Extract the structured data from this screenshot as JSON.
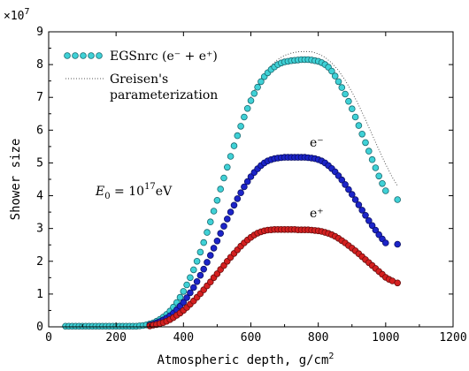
{
  "chart_data": {
    "type": "scatter",
    "xlabel": "Atmospheric depth, g/cm",
    "xlabel_sup": "2",
    "ylabel": "Shower size",
    "y_multiplier_prefix": "×10",
    "y_multiplier_exp": "7",
    "xlim": [
      0,
      1200
    ],
    "ylim": [
      0,
      9
    ],
    "x_ticks": [
      0,
      200,
      400,
      600,
      800,
      1000,
      1200
    ],
    "y_ticks": [
      0,
      1,
      2,
      3,
      4,
      5,
      6,
      7,
      8,
      9
    ],
    "grid": false,
    "legend_placement": "top-left",
    "legend": [
      {
        "label": "EGSnrc (e⁻ + e⁺)",
        "marker": "circle",
        "color": "#3fd1d6"
      },
      {
        "label_line1": "Greisen's",
        "label_line2": "parameterization",
        "style": "dotted",
        "color": "#555555"
      }
    ],
    "annotation": {
      "text_main": "E",
      "text_sub": "0",
      "text_eq": " = 10",
      "text_sup": "17",
      "text_unit": "eV"
    },
    "series": [
      {
        "name": "EGSnrc (e⁻ + e⁺)",
        "label": "",
        "color": "#3fd1d6",
        "edge": "#1a6a70",
        "points": [
          [
            50,
            0.02
          ],
          [
            60,
            0.02
          ],
          [
            70,
            0.02
          ],
          [
            80,
            0.02
          ],
          [
            90,
            0.02
          ],
          [
            100,
            0.02
          ],
          [
            110,
            0.02
          ],
          [
            120,
            0.02
          ],
          [
            130,
            0.02
          ],
          [
            140,
            0.02
          ],
          [
            150,
            0.02
          ],
          [
            160,
            0.02
          ],
          [
            170,
            0.02
          ],
          [
            180,
            0.02
          ],
          [
            190,
            0.02
          ],
          [
            200,
            0.02
          ],
          [
            210,
            0.02
          ],
          [
            220,
            0.02
          ],
          [
            230,
            0.02
          ],
          [
            240,
            0.02
          ],
          [
            250,
            0.02
          ],
          [
            260,
            0.02
          ],
          [
            270,
            0.03
          ],
          [
            280,
            0.04
          ],
          [
            290,
            0.06
          ],
          [
            300,
            0.09
          ],
          [
            310,
            0.12
          ],
          [
            320,
            0.17
          ],
          [
            330,
            0.23
          ],
          [
            340,
            0.3
          ],
          [
            350,
            0.38
          ],
          [
            360,
            0.48
          ],
          [
            370,
            0.6
          ],
          [
            380,
            0.74
          ],
          [
            390,
            0.9
          ],
          [
            400,
            1.08
          ],
          [
            410,
            1.28
          ],
          [
            420,
            1.5
          ],
          [
            430,
            1.74
          ],
          [
            440,
            2.0
          ],
          [
            450,
            2.28
          ],
          [
            460,
            2.57
          ],
          [
            470,
            2.88
          ],
          [
            480,
            3.2
          ],
          [
            490,
            3.53
          ],
          [
            500,
            3.86
          ],
          [
            510,
            4.2
          ],
          [
            520,
            4.54
          ],
          [
            530,
            4.87
          ],
          [
            540,
            5.2
          ],
          [
            550,
            5.52
          ],
          [
            560,
            5.83
          ],
          [
            570,
            6.12
          ],
          [
            580,
            6.4
          ],
          [
            590,
            6.66
          ],
          [
            600,
            6.9
          ],
          [
            610,
            7.12
          ],
          [
            620,
            7.31
          ],
          [
            630,
            7.48
          ],
          [
            640,
            7.63
          ],
          [
            650,
            7.75
          ],
          [
            660,
            7.85
          ],
          [
            670,
            7.93
          ],
          [
            680,
            8.0
          ],
          [
            690,
            8.05
          ],
          [
            700,
            8.08
          ],
          [
            710,
            8.1
          ],
          [
            720,
            8.12
          ],
          [
            730,
            8.13
          ],
          [
            740,
            8.14
          ],
          [
            750,
            8.15
          ],
          [
            760,
            8.15
          ],
          [
            770,
            8.15
          ],
          [
            780,
            8.14
          ],
          [
            790,
            8.12
          ],
          [
            800,
            8.1
          ],
          [
            810,
            8.06
          ],
          [
            820,
            8.0
          ],
          [
            830,
            7.92
          ],
          [
            840,
            7.8
          ],
          [
            850,
            7.65
          ],
          [
            860,
            7.48
          ],
          [
            870,
            7.3
          ],
          [
            880,
            7.1
          ],
          [
            890,
            6.88
          ],
          [
            900,
            6.65
          ],
          [
            910,
            6.4
          ],
          [
            920,
            6.14
          ],
          [
            930,
            5.88
          ],
          [
            940,
            5.62
          ],
          [
            950,
            5.36
          ],
          [
            960,
            5.1
          ],
          [
            970,
            4.85
          ],
          [
            980,
            4.6
          ],
          [
            990,
            4.37
          ],
          [
            1000,
            4.15
          ],
          [
            1035,
            3.88
          ]
        ]
      },
      {
        "name": "e⁻",
        "label": "e⁻",
        "color": "#1c24c8",
        "edge": "#0a0f66",
        "points": [
          [
            300,
            0.05
          ],
          [
            310,
            0.08
          ],
          [
            320,
            0.12
          ],
          [
            330,
            0.16
          ],
          [
            340,
            0.21
          ],
          [
            350,
            0.27
          ],
          [
            360,
            0.34
          ],
          [
            370,
            0.42
          ],
          [
            380,
            0.52
          ],
          [
            390,
            0.63
          ],
          [
            400,
            0.75
          ],
          [
            410,
            0.89
          ],
          [
            420,
            1.04
          ],
          [
            430,
            1.2
          ],
          [
            440,
            1.38
          ],
          [
            450,
            1.57
          ],
          [
            460,
            1.76
          ],
          [
            470,
            1.97
          ],
          [
            480,
            2.18
          ],
          [
            490,
            2.4
          ],
          [
            500,
            2.62
          ],
          [
            510,
            2.85
          ],
          [
            520,
            3.07
          ],
          [
            530,
            3.29
          ],
          [
            540,
            3.5
          ],
          [
            550,
            3.71
          ],
          [
            560,
            3.91
          ],
          [
            570,
            4.09
          ],
          [
            580,
            4.27
          ],
          [
            590,
            4.43
          ],
          [
            600,
            4.58
          ],
          [
            610,
            4.71
          ],
          [
            620,
            4.82
          ],
          [
            630,
            4.92
          ],
          [
            640,
            5.0
          ],
          [
            650,
            5.06
          ],
          [
            660,
            5.1
          ],
          [
            670,
            5.13
          ],
          [
            680,
            5.15
          ],
          [
            690,
            5.16
          ],
          [
            700,
            5.17
          ],
          [
            710,
            5.17
          ],
          [
            720,
            5.17
          ],
          [
            730,
            5.17
          ],
          [
            740,
            5.17
          ],
          [
            750,
            5.17
          ],
          [
            760,
            5.17
          ],
          [
            770,
            5.16
          ],
          [
            780,
            5.15
          ],
          [
            790,
            5.13
          ],
          [
            800,
            5.1
          ],
          [
            810,
            5.06
          ],
          [
            820,
            5.0
          ],
          [
            830,
            4.92
          ],
          [
            840,
            4.83
          ],
          [
            850,
            4.73
          ],
          [
            860,
            4.61
          ],
          [
            870,
            4.48
          ],
          [
            880,
            4.34
          ],
          [
            890,
            4.19
          ],
          [
            900,
            4.04
          ],
          [
            910,
            3.88
          ],
          [
            920,
            3.72
          ],
          [
            930,
            3.56
          ],
          [
            940,
            3.4
          ],
          [
            950,
            3.24
          ],
          [
            960,
            3.09
          ],
          [
            970,
            2.95
          ],
          [
            980,
            2.81
          ],
          [
            990,
            2.68
          ],
          [
            1000,
            2.56
          ],
          [
            1035,
            2.52
          ]
        ]
      },
      {
        "name": "e⁺",
        "label": "e⁺",
        "color": "#d42020",
        "edge": "#6a0e0e",
        "points": [
          [
            300,
            0.03
          ],
          [
            310,
            0.05
          ],
          [
            320,
            0.07
          ],
          [
            330,
            0.1
          ],
          [
            340,
            0.13
          ],
          [
            350,
            0.17
          ],
          [
            360,
            0.22
          ],
          [
            370,
            0.28
          ],
          [
            380,
            0.35
          ],
          [
            390,
            0.42
          ],
          [
            400,
            0.5
          ],
          [
            410,
            0.59
          ],
          [
            420,
            0.69
          ],
          [
            430,
            0.79
          ],
          [
            440,
            0.9
          ],
          [
            450,
            1.01
          ],
          [
            460,
            1.13
          ],
          [
            470,
            1.25
          ],
          [
            480,
            1.37
          ],
          [
            490,
            1.5
          ],
          [
            500,
            1.62
          ],
          [
            510,
            1.75
          ],
          [
            520,
            1.87
          ],
          [
            530,
            2.0
          ],
          [
            540,
            2.12
          ],
          [
            550,
            2.24
          ],
          [
            560,
            2.35
          ],
          [
            570,
            2.46
          ],
          [
            580,
            2.56
          ],
          [
            590,
            2.65
          ],
          [
            600,
            2.73
          ],
          [
            610,
            2.8
          ],
          [
            620,
            2.86
          ],
          [
            630,
            2.9
          ],
          [
            640,
            2.93
          ],
          [
            650,
            2.95
          ],
          [
            660,
            2.96
          ],
          [
            670,
            2.97
          ],
          [
            680,
            2.97
          ],
          [
            690,
            2.97
          ],
          [
            700,
            2.97
          ],
          [
            710,
            2.97
          ],
          [
            720,
            2.97
          ],
          [
            730,
            2.97
          ],
          [
            740,
            2.96
          ],
          [
            750,
            2.96
          ],
          [
            760,
            2.96
          ],
          [
            770,
            2.96
          ],
          [
            780,
            2.95
          ],
          [
            790,
            2.94
          ],
          [
            800,
            2.93
          ],
          [
            810,
            2.91
          ],
          [
            820,
            2.88
          ],
          [
            830,
            2.85
          ],
          [
            840,
            2.81
          ],
          [
            850,
            2.76
          ],
          [
            860,
            2.7
          ],
          [
            870,
            2.63
          ],
          [
            880,
            2.56
          ],
          [
            890,
            2.48
          ],
          [
            900,
            2.4
          ],
          [
            910,
            2.32
          ],
          [
            920,
            2.23
          ],
          [
            930,
            2.14
          ],
          [
            940,
            2.05
          ],
          [
            950,
            1.96
          ],
          [
            960,
            1.87
          ],
          [
            970,
            1.78
          ],
          [
            980,
            1.69
          ],
          [
            990,
            1.6
          ],
          [
            1000,
            1.51
          ],
          [
            1010,
            1.45
          ],
          [
            1020,
            1.4
          ],
          [
            1035,
            1.34
          ]
        ]
      },
      {
        "name": "Greisen's parameterization",
        "label": "",
        "style": "dotted",
        "color": "#555555",
        "points": [
          [
            600,
            7.0
          ],
          [
            620,
            7.4
          ],
          [
            640,
            7.72
          ],
          [
            660,
            7.98
          ],
          [
            680,
            8.16
          ],
          [
            700,
            8.28
          ],
          [
            720,
            8.35
          ],
          [
            740,
            8.39
          ],
          [
            760,
            8.4
          ],
          [
            780,
            8.39
          ],
          [
            800,
            8.33
          ],
          [
            820,
            8.22
          ],
          [
            840,
            8.05
          ],
          [
            860,
            7.82
          ],
          [
            880,
            7.52
          ],
          [
            900,
            7.16
          ],
          [
            920,
            6.76
          ],
          [
            940,
            6.32
          ],
          [
            960,
            5.86
          ],
          [
            980,
            5.4
          ],
          [
            1000,
            4.96
          ],
          [
            1020,
            4.56
          ],
          [
            1035,
            4.3
          ]
        ]
      }
    ]
  }
}
